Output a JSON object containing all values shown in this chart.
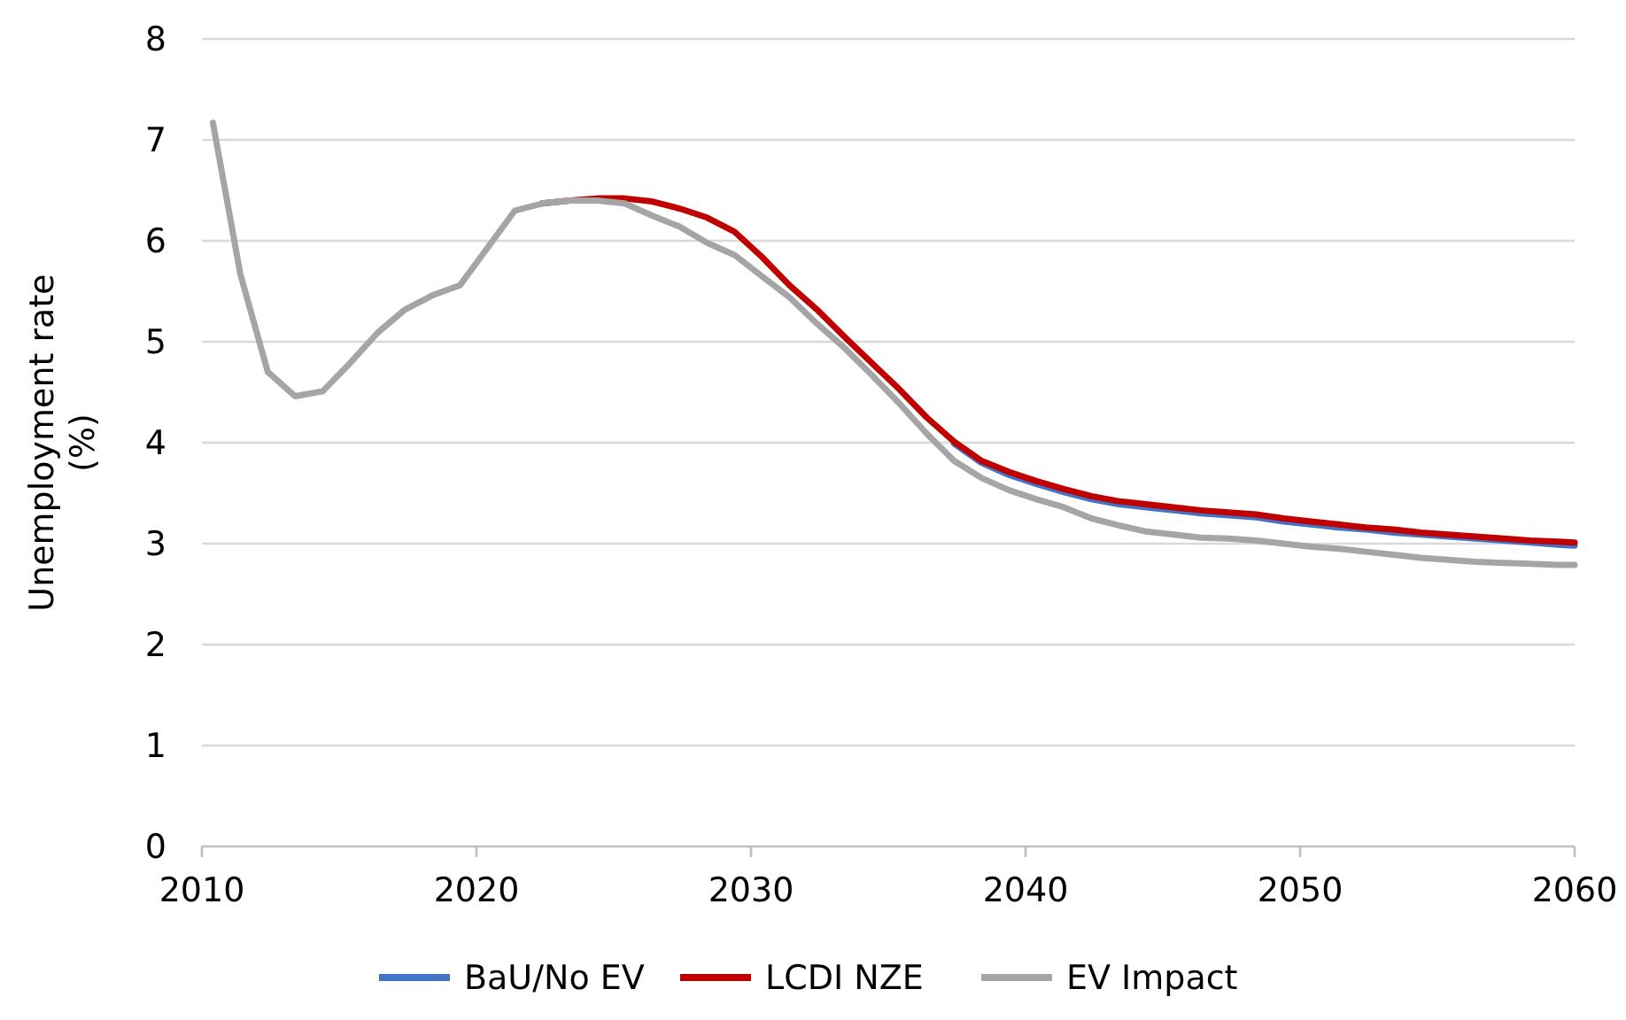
{
  "chart_data": {
    "type": "line",
    "ylabel": "Unemployment rate (%)",
    "xlim": [
      2010,
      2060
    ],
    "xticks": [
      2010,
      2020,
      2030,
      2040,
      2050,
      2060
    ],
    "ylim": [
      0,
      8
    ],
    "yticks": [
      0,
      1,
      2,
      3,
      4,
      5,
      6,
      7,
      8
    ],
    "grid": "y",
    "legend": "bottom",
    "marker": "none",
    "line_style": "solid",
    "x": [
      2010.4,
      2011.4,
      2012.4,
      2013.4,
      2014.4,
      2015.4,
      2016.4,
      2017.4,
      2018.4,
      2019.4,
      2020.4,
      2021.4,
      2022.4,
      2023.4,
      2024.4,
      2025.4,
      2026.4,
      2027.4,
      2028.4,
      2029.4,
      2030.4,
      2031.4,
      2032.4,
      2033.4,
      2034.4,
      2035.4,
      2036.4,
      2037.4,
      2038.4,
      2039.4,
      2040.4,
      2041.4,
      2042.4,
      2043.4,
      2044.4,
      2045.4,
      2046.4,
      2047.4,
      2048.4,
      2049.4,
      2050.4,
      2051.4,
      2052.4,
      2053.4,
      2054.4,
      2055.4,
      2056.4,
      2057.4,
      2058.4,
      2059.4,
      2060
    ],
    "series": [
      {
        "name": "BaU/No EV",
        "color": "#4472c4",
        "values": [
          null,
          null,
          null,
          null,
          null,
          null,
          null,
          null,
          null,
          null,
          null,
          null,
          null,
          null,
          null,
          null,
          null,
          null,
          null,
          null,
          null,
          null,
          null,
          null,
          null,
          null,
          null,
          3.99,
          3.8,
          3.68,
          3.59,
          3.51,
          3.44,
          3.39,
          3.36,
          3.33,
          3.3,
          3.28,
          3.26,
          3.22,
          3.19,
          3.16,
          3.14,
          3.11,
          3.09,
          3.07,
          3.05,
          3.03,
          3.01,
          2.99,
          2.98
        ]
      },
      {
        "name": "LCDI NZE",
        "color": "#c00000",
        "values": [
          null,
          null,
          null,
          null,
          null,
          null,
          null,
          null,
          null,
          null,
          null,
          null,
          6.37,
          6.4,
          6.42,
          6.42,
          6.39,
          6.32,
          6.23,
          6.09,
          5.84,
          5.56,
          5.32,
          5.05,
          4.79,
          4.53,
          4.25,
          4.01,
          3.82,
          3.71,
          3.62,
          3.54,
          3.47,
          3.42,
          3.39,
          3.36,
          3.33,
          3.31,
          3.29,
          3.25,
          3.22,
          3.19,
          3.16,
          3.14,
          3.11,
          3.09,
          3.07,
          3.05,
          3.03,
          3.02,
          3.01
        ]
      },
      {
        "name": "EV Impact",
        "color": "#a5a5a5",
        "values": [
          7.17,
          5.67,
          4.7,
          4.46,
          4.51,
          4.79,
          5.09,
          5.32,
          5.46,
          5.56,
          5.93,
          6.3,
          6.37,
          6.4,
          6.4,
          6.37,
          6.25,
          6.14,
          5.98,
          5.86,
          5.65,
          5.44,
          5.18,
          4.94,
          4.67,
          4.39,
          4.09,
          3.82,
          3.65,
          3.53,
          3.44,
          3.36,
          3.25,
          3.18,
          3.12,
          3.09,
          3.06,
          3.05,
          3.03,
          3.0,
          2.97,
          2.95,
          2.92,
          2.89,
          2.86,
          2.84,
          2.82,
          2.81,
          2.8,
          2.79,
          2.79
        ]
      }
    ]
  }
}
